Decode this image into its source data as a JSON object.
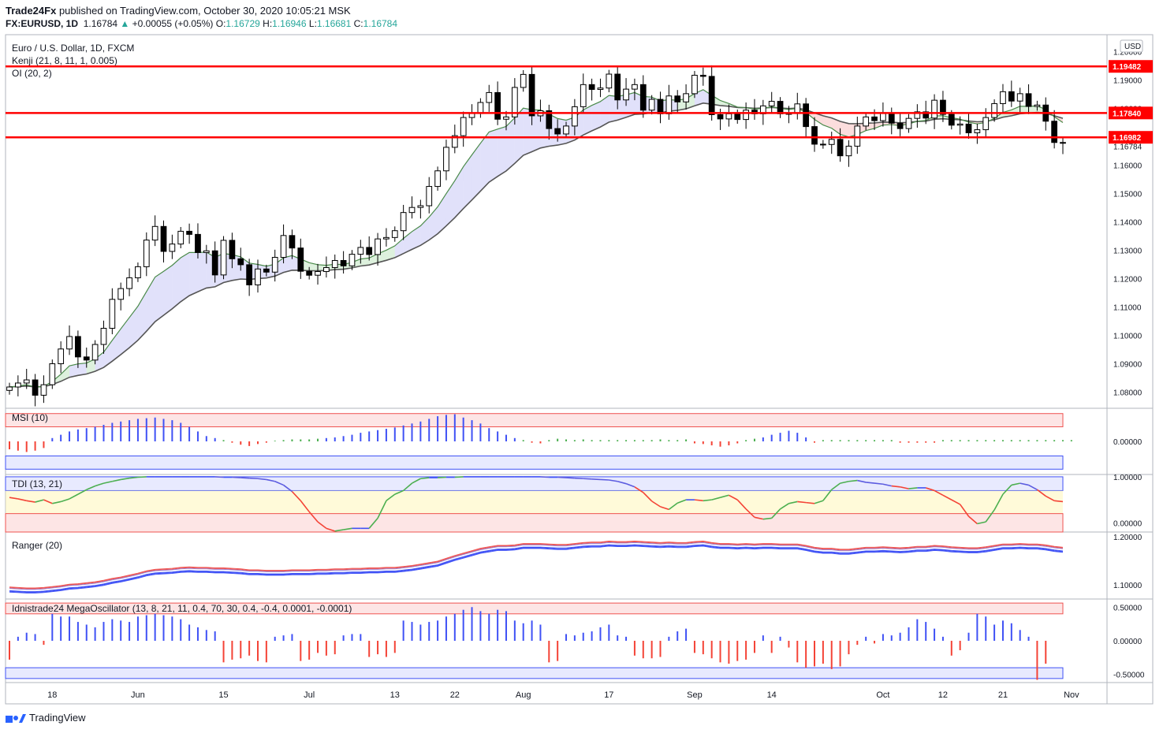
{
  "header": {
    "publisher": "Trade24Fx",
    "published_text": "published on TradingView.com, October 30, 2020 10:05:21 MSK",
    "symbol": "FX:EURUSD, 1D",
    "last": "1.16784",
    "change_arrow": "▲",
    "change": "+0.00055 (+0.05%)",
    "o_label": "O:",
    "o": "1.16729",
    "h_label": "H:",
    "h": "1.16946",
    "l_label": "L:",
    "l": "1.16681",
    "c_label": "C:",
    "c": "1.16784"
  },
  "footer": {
    "brand": "TradingView"
  },
  "colors": {
    "up": "#26a69a",
    "down": "#ef5350",
    "level": "#ff0000",
    "blue": "#3f51f5",
    "green": "#4caf50",
    "red": "#f44336"
  },
  "chart_data": [
    {
      "type": "candlestick",
      "title": "Euro / U.S. Dollar, 1D, FXCM",
      "indicators": [
        "Kenji (21, 8, 11, 1, 0.005)",
        "OI (20, 2)"
      ],
      "currency": "USD",
      "ylim": [
        1.0743,
        1.206
      ],
      "y_ticks": [
        "1.20000",
        "1.19000",
        "1.18000",
        "1.17000",
        "1.16000",
        "1.15000",
        "1.14000",
        "1.13000",
        "1.12000",
        "1.11000",
        "1.10000",
        "1.09000",
        "1.08000"
      ],
      "x_ticks": [
        {
          "label": "18",
          "i": 5
        },
        {
          "label": "Jun",
          "i": 15
        },
        {
          "label": "15",
          "i": 25
        },
        {
          "label": "Jul",
          "i": 35
        },
        {
          "label": "13",
          "i": 45
        },
        {
          "label": "22",
          "i": 52
        },
        {
          "label": "Aug",
          "i": 60
        },
        {
          "label": "17",
          "i": 70
        },
        {
          "label": "Sep",
          "i": 80
        },
        {
          "label": "14",
          "i": 89
        },
        {
          "label": "Oct",
          "i": 102
        },
        {
          "label": "12",
          "i": 109
        },
        {
          "label": "21",
          "i": 116
        },
        {
          "label": "Nov",
          "i": 124
        }
      ],
      "levels": [
        {
          "value": 1.19482,
          "label": "1.19482"
        },
        {
          "value": 1.1784,
          "label": "1.17840"
        },
        {
          "value": 1.16982,
          "label": "1.16982"
        }
      ],
      "last_price_label": "1.16784",
      "closes": [
        1.0818,
        1.0832,
        1.0843,
        1.0789,
        1.0826,
        1.09,
        1.0952,
        1.0996,
        1.0924,
        1.0913,
        1.0968,
        1.1025,
        1.1127,
        1.1165,
        1.1203,
        1.1242,
        1.1336,
        1.1384,
        1.1296,
        1.1322,
        1.1367,
        1.1356,
        1.1292,
        1.1298,
        1.1213,
        1.1335,
        1.127,
        1.1249,
        1.1178,
        1.1234,
        1.1223,
        1.1275,
        1.1352,
        1.1308,
        1.1226,
        1.1212,
        1.1225,
        1.1239,
        1.1264,
        1.1245,
        1.1286,
        1.131,
        1.1285,
        1.134,
        1.1345,
        1.1369,
        1.1433,
        1.1451,
        1.1457,
        1.1525,
        1.158,
        1.1663,
        1.1704,
        1.1768,
        1.1782,
        1.1821,
        1.1856,
        1.1762,
        1.177,
        1.1874,
        1.192,
        1.1774,
        1.1792,
        1.1729,
        1.171,
        1.1738,
        1.1806,
        1.1884,
        1.1867,
        1.1872,
        1.1921,
        1.183,
        1.1868,
        1.1884,
        1.1794,
        1.1832,
        1.1781,
        1.1844,
        1.1823,
        1.1852,
        1.1917,
        1.1913,
        1.1778,
        1.1763,
        1.1781,
        1.1761,
        1.1794,
        1.1781,
        1.1809,
        1.1825,
        1.1781,
        1.1782,
        1.1816,
        1.1736,
        1.1674,
        1.1673,
        1.1691,
        1.1633,
        1.1667,
        1.1738,
        1.177,
        1.1757,
        1.1782,
        1.1748,
        1.1729,
        1.1765,
        1.1788,
        1.1766,
        1.1829,
        1.1779,
        1.1741,
        1.1745,
        1.1714,
        1.1725,
        1.1768,
        1.1817,
        1.1859,
        1.1826,
        1.1852,
        1.1807,
        1.1812,
        1.1755,
        1.168,
        1.1678
      ]
    },
    {
      "type": "bar",
      "title": "MSI (10)",
      "ylim": [
        -0.5,
        0.5
      ],
      "y_ticks": [
        "0.00000"
      ],
      "values": [
        -0.12,
        -0.14,
        -0.16,
        -0.14,
        -0.1,
        0.05,
        0.1,
        0.15,
        0.18,
        0.2,
        0.22,
        0.25,
        0.28,
        0.3,
        0.32,
        0.34,
        0.35,
        0.36,
        0.34,
        0.32,
        0.28,
        0.22,
        0.15,
        0.08,
        0.05,
        0.02,
        -0.02,
        -0.05,
        -0.07,
        -0.04,
        -0.02,
        0.01,
        0.02,
        0.03,
        0.03,
        0.03,
        0.04,
        0.05,
        0.06,
        0.08,
        0.1,
        0.13,
        0.15,
        0.17,
        0.19,
        0.21,
        0.24,
        0.27,
        0.3,
        0.34,
        0.38,
        0.4,
        0.41,
        0.36,
        0.32,
        0.27,
        0.2,
        0.15,
        0.1,
        0.05,
        0.02,
        -0.02,
        -0.03,
        0.02,
        0.04,
        0.03,
        0.02,
        0.03,
        0.02,
        0.02,
        0.02,
        0.02,
        0.02,
        0.02,
        0.02,
        0.02,
        0.03,
        0.02,
        0.02,
        0.03,
        -0.03,
        -0.04,
        -0.06,
        -0.08,
        -0.06,
        -0.03,
        0.02,
        0.04,
        0.06,
        0.1,
        0.13,
        0.16,
        0.13,
        0.06,
        -0.02,
        0.02,
        0.02,
        0.02,
        0.02,
        0.02,
        0.02,
        0.02,
        0.02,
        0.02,
        -0.02,
        -0.02,
        -0.02,
        -0.02,
        -0.02,
        0.02,
        0.02,
        0.02,
        0.02,
        0.02,
        0.02,
        0.02,
        0.02,
        0.02,
        0.02,
        0.02,
        0.02,
        0.02,
        0.02,
        0.02,
        0.02
      ]
    },
    {
      "type": "line",
      "title": "TDI (13, 21)",
      "ylim": [
        -0.2,
        1.05
      ],
      "y_ticks": [
        "1.00000",
        "0.00000"
      ],
      "values": [
        0.55,
        0.52,
        0.48,
        0.45,
        0.5,
        0.42,
        0.46,
        0.52,
        0.62,
        0.72,
        0.8,
        0.86,
        0.9,
        0.94,
        0.97,
        0.99,
        1.0,
        1.0,
        1.0,
        1.0,
        1.0,
        1.0,
        1.0,
        1.0,
        1.0,
        0.99,
        0.99,
        0.98,
        0.97,
        0.96,
        0.94,
        0.9,
        0.82,
        0.68,
        0.48,
        0.24,
        0.02,
        -0.12,
        -0.18,
        -0.15,
        -0.12,
        -0.12,
        -0.12,
        0.1,
        0.48,
        0.62,
        0.7,
        0.86,
        0.96,
        0.98,
        0.98,
        0.99,
        0.99,
        1.0,
        1.0,
        1.0,
        1.0,
        1.0,
        1.0,
        1.0,
        1.0,
        1.0,
        1.0,
        0.99,
        0.99,
        0.98,
        0.97,
        0.96,
        0.95,
        0.94,
        0.93,
        0.9,
        0.85,
        0.78,
        0.66,
        0.47,
        0.35,
        0.29,
        0.43,
        0.5,
        0.5,
        0.48,
        0.5,
        0.55,
        0.6,
        0.5,
        0.3,
        0.12,
        0.08,
        0.1,
        0.3,
        0.42,
        0.46,
        0.44,
        0.42,
        0.48,
        0.72,
        0.86,
        0.9,
        0.92,
        0.88,
        0.86,
        0.84,
        0.8,
        0.78,
        0.74,
        0.76,
        0.76,
        0.7,
        0.6,
        0.5,
        0.4,
        0.14,
        -0.02,
        0.02,
        0.28,
        0.62,
        0.82,
        0.86,
        0.82,
        0.72,
        0.58,
        0.48,
        0.46
      ]
    },
    {
      "type": "line",
      "title": "Ranger (20)",
      "ylim": [
        1.07,
        1.21
      ],
      "y_ticks": [
        "1.20000",
        "1.10000"
      ],
      "series": [
        {
          "values": [
            1.089,
            1.088,
            1.087,
            1.087,
            1.088,
            1.09,
            1.092,
            1.095,
            1.096,
            1.098,
            1.1,
            1.103,
            1.107,
            1.11,
            1.114,
            1.118,
            1.123,
            1.126,
            1.127,
            1.128,
            1.13,
            1.131,
            1.13,
            1.13,
            1.129,
            1.129,
            1.128,
            1.127,
            1.125,
            1.125,
            1.124,
            1.124,
            1.124,
            1.125,
            1.125,
            1.125,
            1.126,
            1.126,
            1.127,
            1.127,
            1.128,
            1.128,
            1.129,
            1.129,
            1.13,
            1.13,
            1.132,
            1.134,
            1.137,
            1.14,
            1.143,
            1.149,
            1.155,
            1.16,
            1.165,
            1.17,
            1.173,
            1.176,
            1.176,
            1.177,
            1.18,
            1.18,
            1.18,
            1.179,
            1.178,
            1.178,
            1.18,
            1.182,
            1.183,
            1.183,
            1.185,
            1.184,
            1.184,
            1.185,
            1.184,
            1.183,
            1.182,
            1.183,
            1.182,
            1.182,
            1.184,
            1.185,
            1.182,
            1.18,
            1.18,
            1.179,
            1.18,
            1.179,
            1.18,
            1.18,
            1.179,
            1.179,
            1.179,
            1.176,
            1.172,
            1.17,
            1.17,
            1.168,
            1.168,
            1.17,
            1.172,
            1.172,
            1.173,
            1.172,
            1.171,
            1.172,
            1.174,
            1.174,
            1.176,
            1.175,
            1.173,
            1.172,
            1.171,
            1.171,
            1.173,
            1.176,
            1.179,
            1.179,
            1.18,
            1.179,
            1.179,
            1.177,
            1.174,
            1.172
          ]
        }
      ]
    },
    {
      "type": "bar",
      "title": "Idnistrade24 MegaOscillator (13, 8, 21, 11, 0.4, 70, 30, 0.4, -0.4, 0.0001, -0.0001)",
      "ylim": [
        -0.62,
        0.62
      ],
      "y_ticks": [
        "0.50000",
        "0.00000",
        "-0.50000"
      ],
      "values": [
        -0.28,
        0.06,
        0.12,
        0.1,
        -0.06,
        0.4,
        0.36,
        0.36,
        0.28,
        0.24,
        0.2,
        0.28,
        0.32,
        0.3,
        0.28,
        0.36,
        0.38,
        0.4,
        0.38,
        0.36,
        0.32,
        0.24,
        0.2,
        0.16,
        0.14,
        -0.32,
        -0.28,
        -0.26,
        -0.22,
        -0.3,
        -0.32,
        0.06,
        0.08,
        0.1,
        -0.3,
        -0.28,
        -0.18,
        -0.22,
        -0.2,
        0.08,
        0.1,
        0.1,
        -0.24,
        -0.2,
        -0.24,
        -0.18,
        0.3,
        0.28,
        0.24,
        0.28,
        0.3,
        0.36,
        0.4,
        0.46,
        0.5,
        0.44,
        0.4,
        0.46,
        0.44,
        0.3,
        0.26,
        0.3,
        0.24,
        -0.32,
        -0.3,
        0.1,
        0.08,
        0.12,
        0.14,
        0.2,
        0.24,
        0.08,
        0.06,
        -0.22,
        -0.26,
        -0.26,
        -0.24,
        0.06,
        0.14,
        0.18,
        -0.18,
        -0.2,
        -0.26,
        -0.32,
        -0.34,
        -0.3,
        -0.28,
        -0.18,
        0.08,
        -0.18,
        0.06,
        -0.1,
        -0.32,
        -0.4,
        -0.38,
        -0.34,
        -0.42,
        -0.38,
        -0.2,
        -0.06,
        0.06,
        -0.04,
        0.1,
        0.08,
        0.12,
        0.2,
        0.32,
        0.28,
        0.18,
        0.06,
        -0.22,
        -0.14,
        0.12,
        0.4,
        0.36,
        0.24,
        0.3,
        0.26,
        0.16,
        0.06,
        -0.58,
        -0.34
      ]
    }
  ]
}
